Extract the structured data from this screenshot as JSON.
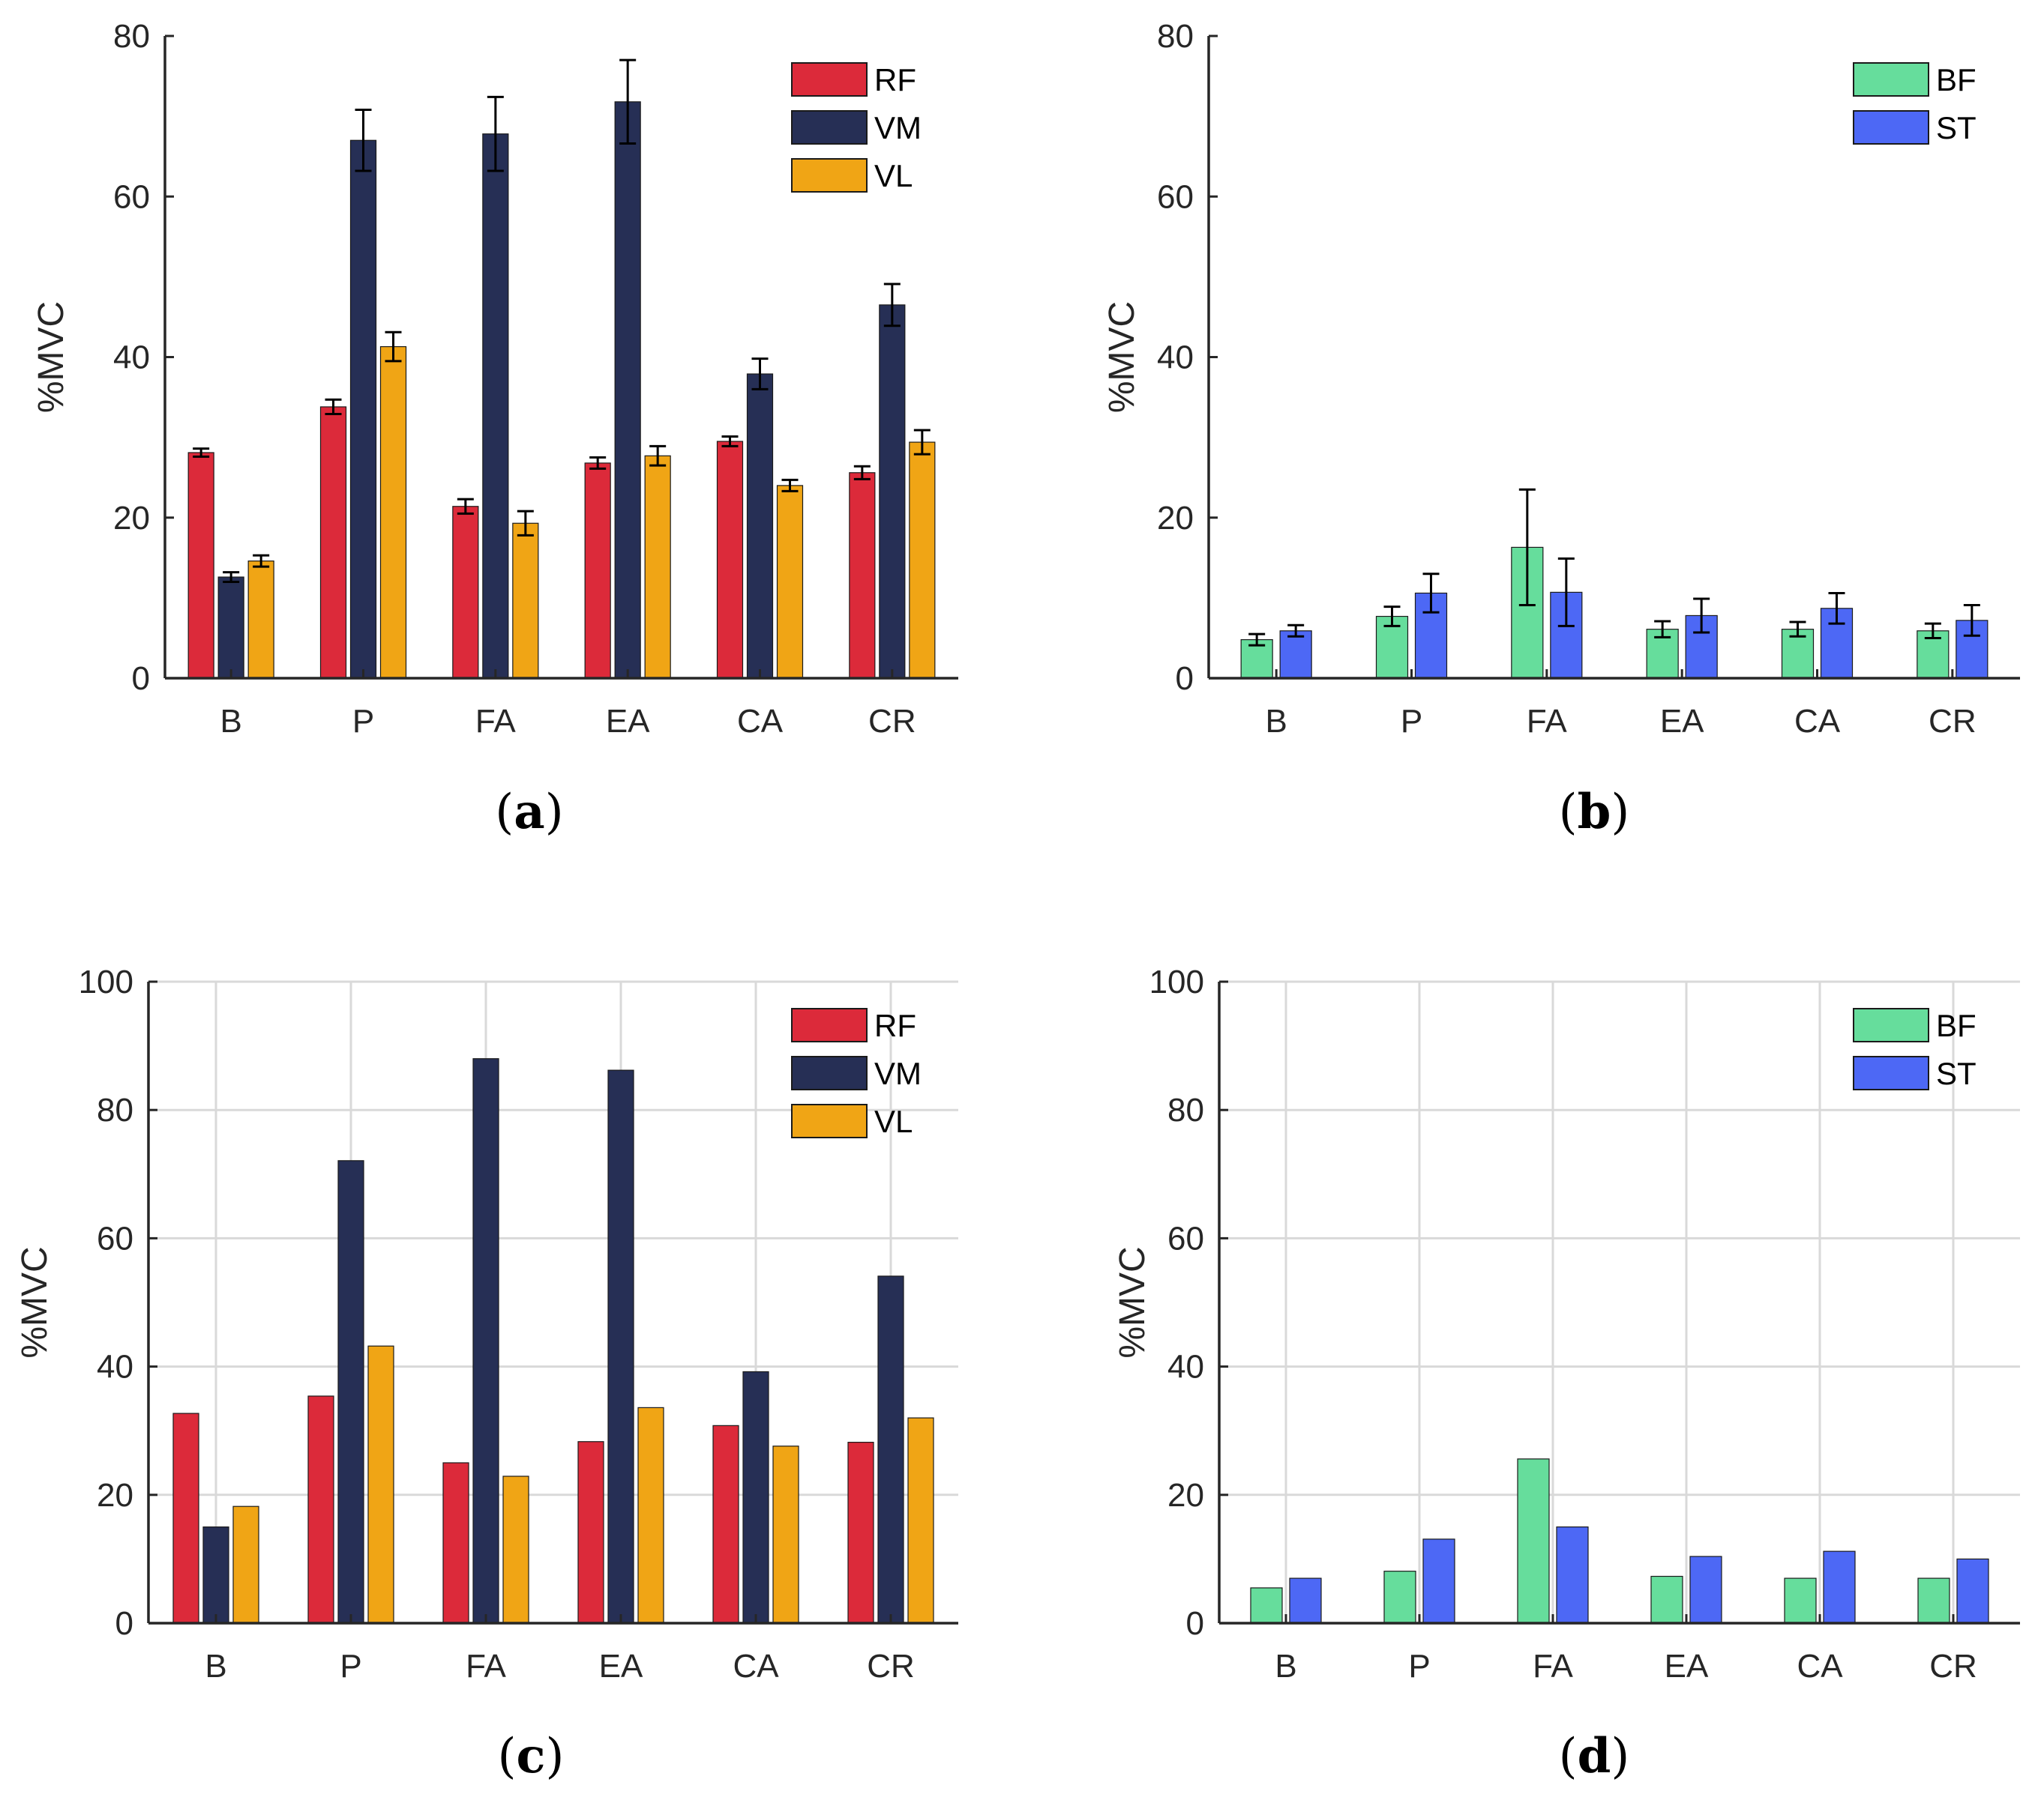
{
  "colors": {
    "RF": "#dc2a3a",
    "VM": "#262f55",
    "VL": "#f0a515",
    "BF": "#66dd9c",
    "ST": "#4d68f5",
    "axis": "#262626",
    "grid": "#d9d9d9"
  },
  "chart_data": [
    {
      "id": "a",
      "type": "bar",
      "panel_label": "a",
      "categories": [
        "B",
        "P",
        "FA",
        "EA",
        "CA",
        "CR"
      ],
      "ylabel": "%MVC",
      "ylim": [
        0,
        80
      ],
      "yticks": [
        0,
        20,
        40,
        60,
        80
      ],
      "grid": false,
      "error_bars": true,
      "legend_position": "top-right",
      "series": [
        {
          "name": "RF",
          "values": [
            28.1,
            33.8,
            21.4,
            26.8,
            29.5,
            25.6
          ],
          "errors": [
            0.5,
            0.9,
            0.9,
            0.7,
            0.6,
            0.8
          ]
        },
        {
          "name": "VM",
          "values": [
            12.6,
            67.0,
            67.8,
            71.8,
            37.9,
            46.5
          ],
          "errors": [
            0.6,
            3.8,
            4.6,
            5.2,
            1.9,
            2.6
          ]
        },
        {
          "name": "VL",
          "values": [
            14.6,
            41.3,
            19.3,
            27.7,
            24.0,
            29.4
          ],
          "errors": [
            0.7,
            1.8,
            1.5,
            1.2,
            0.7,
            1.5
          ]
        }
      ]
    },
    {
      "id": "b",
      "type": "bar",
      "panel_label": "b",
      "categories": [
        "B",
        "P",
        "FA",
        "EA",
        "CA",
        "CR"
      ],
      "ylabel": "%MVC",
      "ylim": [
        0,
        80
      ],
      "yticks": [
        0,
        20,
        40,
        60,
        80
      ],
      "grid": false,
      "error_bars": true,
      "legend_position": "top-right",
      "series": [
        {
          "name": "BF",
          "values": [
            4.8,
            7.7,
            16.3,
            6.1,
            6.1,
            5.9
          ],
          "errors": [
            0.7,
            1.2,
            7.2,
            1.0,
            0.9,
            0.9
          ]
        },
        {
          "name": "ST",
          "values": [
            5.9,
            10.6,
            10.7,
            7.8,
            8.7,
            7.2
          ],
          "errors": [
            0.7,
            2.4,
            4.2,
            2.1,
            1.9,
            1.9
          ]
        }
      ]
    },
    {
      "id": "c",
      "type": "bar",
      "panel_label": "c",
      "categories": [
        "B",
        "P",
        "FA",
        "EA",
        "CA",
        "CR"
      ],
      "ylabel": "%MVC",
      "ylim": [
        0,
        100
      ],
      "yticks": [
        0,
        20,
        40,
        60,
        80,
        100
      ],
      "grid": true,
      "error_bars": false,
      "legend_position": "top-right",
      "series": [
        {
          "name": "RF",
          "values": [
            32.7,
            35.4,
            25.0,
            28.3,
            30.8,
            28.2
          ]
        },
        {
          "name": "VM",
          "values": [
            15.0,
            72.1,
            88.0,
            86.2,
            39.2,
            54.1
          ]
        },
        {
          "name": "VL",
          "values": [
            18.2,
            43.2,
            22.9,
            33.6,
            27.6,
            32.0
          ]
        }
      ]
    },
    {
      "id": "d",
      "type": "bar",
      "panel_label": "d",
      "categories": [
        "B",
        "P",
        "FA",
        "EA",
        "CA",
        "CR"
      ],
      "ylabel": "%MVC",
      "ylim": [
        0,
        100
      ],
      "yticks": [
        0,
        20,
        40,
        60,
        80,
        100
      ],
      "grid": true,
      "error_bars": false,
      "legend_position": "top-right",
      "series": [
        {
          "name": "BF",
          "values": [
            5.5,
            8.1,
            25.6,
            7.3,
            7.0,
            7.0
          ]
        },
        {
          "name": "ST",
          "values": [
            7.0,
            13.1,
            15.0,
            10.4,
            11.2,
            10.0
          ]
        }
      ]
    }
  ]
}
